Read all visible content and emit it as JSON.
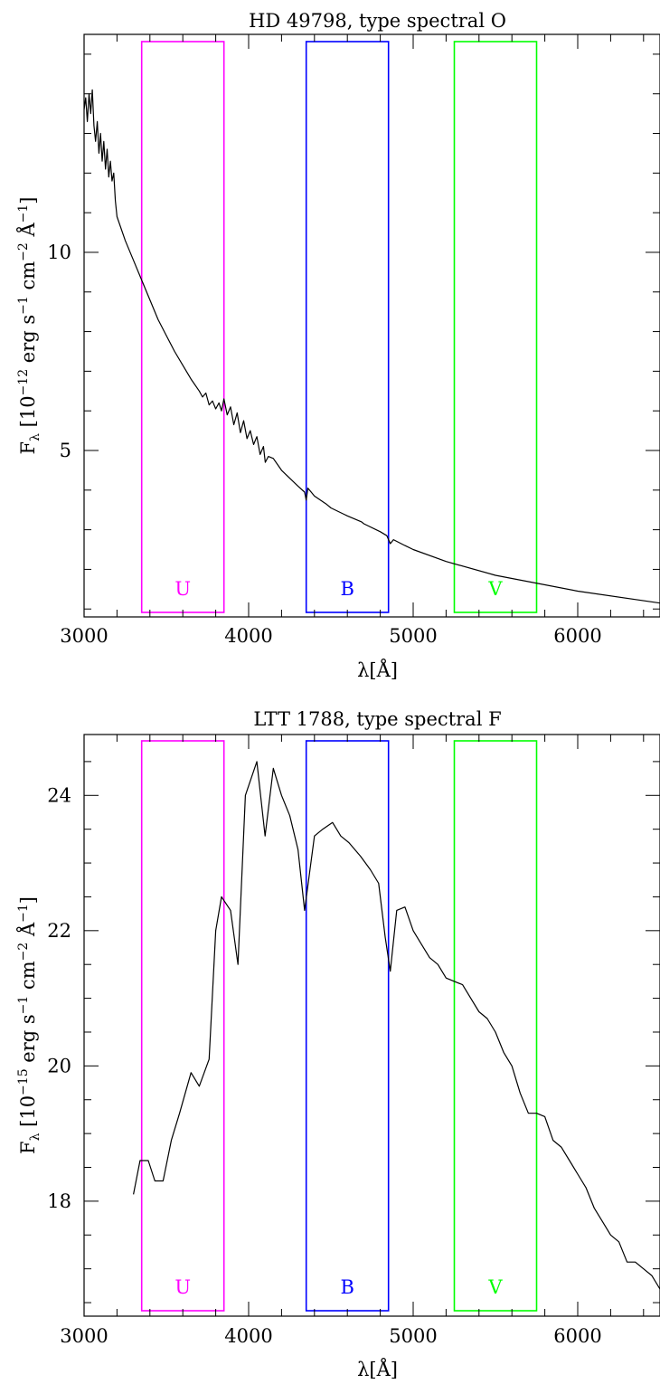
{
  "chart_data": [
    {
      "type": "line",
      "title": "HD 49798, type spectral O",
      "xlabel": "λ[Å]",
      "ylabel": "F_λ [10^-12 erg s^-1 cm^-2 Å^-1]",
      "ylabel_parts": {
        "f": "F",
        "sub": "λ",
        "open": " [10",
        "exp": "−12",
        "mid": " erg s",
        "e1": "−1",
        "mid2": " cm",
        "e2": "−2",
        "mid3": " Å",
        "e3": "−1",
        "close": "]"
      },
      "xlim": [
        3000,
        6500
      ],
      "ylim": [
        0.8,
        15.5
      ],
      "xticks": [
        3000,
        4000,
        5000,
        6000
      ],
      "yticks": [
        5,
        10
      ],
      "x_minor_step": 200,
      "y_minor_step": 1,
      "bands": [
        {
          "name": "U",
          "x0": 3350,
          "x1": 3850,
          "color": "#ff00ff"
        },
        {
          "name": "B",
          "x0": 4350,
          "x1": 4850,
          "color": "#0000ff"
        },
        {
          "name": "V",
          "x0": 5250,
          "x1": 5750,
          "color": "#00ff00"
        }
      ],
      "series": [
        {
          "x": [
            3000,
            3010,
            3020,
            3030,
            3040,
            3050,
            3060,
            3070,
            3080,
            3090,
            3100,
            3110,
            3120,
            3130,
            3140,
            3150,
            3160,
            3170,
            3180,
            3190,
            3200,
            3250,
            3300,
            3350,
            3400,
            3450,
            3500,
            3550,
            3600,
            3650,
            3700,
            3720,
            3740,
            3760,
            3780,
            3800,
            3820,
            3835,
            3850,
            3870,
            3890,
            3910,
            3930,
            3950,
            3970,
            3990,
            4010,
            4030,
            4050,
            4070,
            4090,
            4101,
            4120,
            4150,
            4200,
            4300,
            4340,
            4350,
            4360,
            4380,
            4400,
            4471,
            4500,
            4600,
            4686,
            4700,
            4800,
            4840,
            4861,
            4880,
            4950,
            5000,
            5200,
            5500,
            6000,
            6500
          ],
          "y": [
            13.6,
            13.9,
            13.3,
            14.0,
            13.5,
            14.1,
            13.2,
            12.8,
            13.3,
            12.5,
            13.0,
            12.3,
            12.8,
            12.1,
            12.6,
            11.9,
            12.3,
            11.8,
            12.0,
            11.3,
            10.9,
            10.3,
            9.8,
            9.3,
            8.8,
            8.3,
            7.9,
            7.5,
            7.15,
            6.8,
            6.5,
            6.35,
            6.45,
            6.15,
            6.25,
            6.05,
            6.2,
            6.0,
            6.3,
            5.9,
            6.1,
            5.65,
            5.95,
            5.45,
            5.75,
            5.3,
            5.5,
            5.15,
            5.35,
            4.9,
            5.1,
            4.7,
            4.85,
            4.8,
            4.5,
            4.1,
            3.95,
            3.75,
            4.05,
            3.95,
            3.85,
            3.65,
            3.55,
            3.35,
            3.2,
            3.15,
            2.95,
            2.85,
            2.65,
            2.75,
            2.6,
            2.5,
            2.2,
            1.85,
            1.45,
            1.15
          ]
        }
      ]
    },
    {
      "type": "line",
      "title": "LTT 1788, type spectral F",
      "xlabel": "λ[Å]",
      "ylabel": "F_λ [10^-15 erg s^-1 cm^-2 Å^-1]",
      "ylabel_parts": {
        "f": "F",
        "sub": "λ",
        "open": " [10",
        "exp": "−15",
        "mid": " erg s",
        "e1": "−1",
        "mid2": " cm",
        "e2": "−2",
        "mid3": " Å",
        "e3": "−1",
        "close": "]"
      },
      "xlim": [
        3000,
        6500
      ],
      "ylim": [
        16.3,
        24.9
      ],
      "xticks": [
        3000,
        4000,
        5000,
        6000
      ],
      "yticks": [
        18,
        20,
        22,
        24
      ],
      "x_minor_step": 200,
      "y_minor_step": 0.5,
      "bands": [
        {
          "name": "U",
          "x0": 3350,
          "x1": 3850,
          "color": "#ff00ff"
        },
        {
          "name": "B",
          "x0": 4350,
          "x1": 4850,
          "color": "#0000ff"
        },
        {
          "name": "V",
          "x0": 5250,
          "x1": 5750,
          "color": "#00ff00"
        }
      ],
      "series": [
        {
          "x": [
            3300,
            3340,
            3390,
            3430,
            3480,
            3530,
            3580,
            3650,
            3700,
            3760,
            3800,
            3835,
            3890,
            3935,
            3980,
            4050,
            4100,
            4150,
            4200,
            4250,
            4300,
            4340,
            4400,
            4450,
            4510,
            4560,
            4610,
            4680,
            4740,
            4790,
            4830,
            4861,
            4900,
            4950,
            5000,
            5050,
            5100,
            5150,
            5200,
            5250,
            5300,
            5350,
            5400,
            5450,
            5500,
            5550,
            5600,
            5650,
            5700,
            5750,
            5800,
            5850,
            5900,
            5950,
            6000,
            6050,
            6100,
            6150,
            6200,
            6250,
            6300,
            6350,
            6400,
            6450,
            6500
          ],
          "y": [
            18.1,
            18.6,
            18.6,
            18.3,
            18.3,
            18.9,
            19.3,
            19.9,
            19.7,
            20.1,
            22.0,
            22.5,
            22.3,
            21.5,
            24.0,
            24.5,
            23.4,
            24.4,
            24.0,
            23.7,
            23.2,
            22.3,
            23.4,
            23.5,
            23.6,
            23.4,
            23.3,
            23.1,
            22.9,
            22.7,
            21.9,
            21.4,
            22.3,
            22.35,
            22.0,
            21.8,
            21.6,
            21.5,
            21.3,
            21.25,
            21.2,
            21.0,
            20.8,
            20.7,
            20.5,
            20.2,
            20.0,
            19.6,
            19.3,
            19.3,
            19.25,
            18.9,
            18.8,
            18.6,
            18.4,
            18.2,
            17.9,
            17.7,
            17.5,
            17.4,
            17.1,
            17.1,
            17.0,
            16.9,
            16.7
          ]
        }
      ]
    }
  ]
}
